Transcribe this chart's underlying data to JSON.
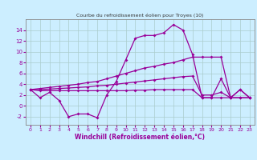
{
  "title": "Courbe du refroidissement éolien pour Troyes (10)",
  "xlabel": "Windchill (Refroidissement éolien,°C)",
  "bg_color": "#cceeff",
  "line_color": "#990099",
  "grid_color": "#aacccc",
  "x": [
    0,
    1,
    2,
    3,
    4,
    5,
    6,
    7,
    8,
    9,
    10,
    11,
    12,
    13,
    14,
    15,
    16,
    17,
    18,
    19,
    20,
    21,
    22,
    23
  ],
  "y_main": [
    3.0,
    1.5,
    2.5,
    1.0,
    -2.0,
    -1.5,
    -1.5,
    -2.2,
    2.0,
    4.5,
    8.5,
    12.5,
    13.0,
    13.0,
    13.5,
    15.0,
    14.0,
    9.5,
    1.5,
    1.5,
    5.0,
    1.5,
    3.0,
    1.5
  ],
  "y_upper": [
    3.0,
    3.2,
    3.4,
    3.6,
    3.8,
    4.0,
    4.3,
    4.5,
    5.0,
    5.5,
    6.0,
    6.5,
    7.0,
    7.3,
    7.7,
    8.0,
    8.5,
    9.0,
    9.0,
    9.0,
    9.0,
    1.5,
    3.0,
    1.5
  ],
  "y_mid": [
    3.0,
    3.0,
    3.1,
    3.2,
    3.3,
    3.4,
    3.5,
    3.7,
    3.8,
    4.0,
    4.2,
    4.4,
    4.6,
    4.8,
    5.0,
    5.2,
    5.4,
    5.5,
    2.0,
    2.0,
    2.5,
    1.5,
    1.5,
    1.5
  ],
  "y_lower": [
    3.0,
    2.8,
    2.8,
    2.8,
    2.8,
    2.8,
    2.8,
    2.8,
    2.8,
    2.8,
    2.8,
    2.9,
    2.9,
    3.0,
    3.0,
    3.0,
    3.0,
    3.0,
    1.5,
    1.5,
    1.5,
    1.5,
    1.5,
    1.5
  ],
  "ylim": [
    -3.5,
    16
  ],
  "yticks": [
    -2,
    0,
    2,
    4,
    6,
    8,
    10,
    12,
    14
  ],
  "xticks": [
    0,
    1,
    2,
    3,
    4,
    5,
    6,
    7,
    8,
    9,
    10,
    11,
    12,
    13,
    14,
    15,
    16,
    17,
    18,
    19,
    20,
    21,
    22,
    23
  ]
}
